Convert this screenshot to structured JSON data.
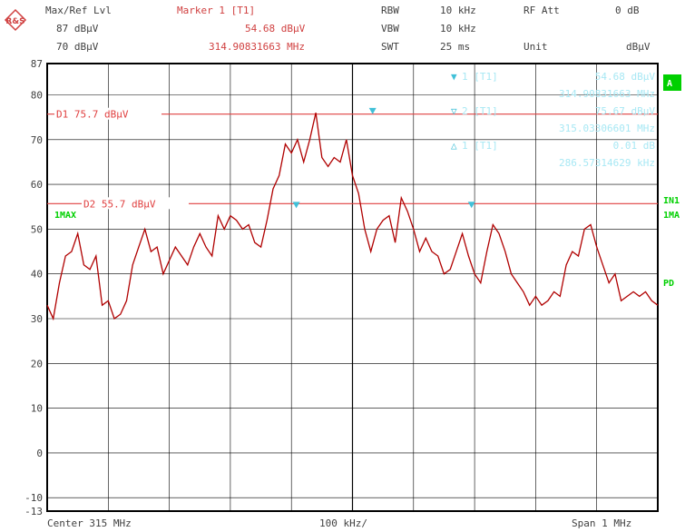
{
  "colors": {
    "trace": "#b00000",
    "display_line": "#e04040",
    "marker": "#40c0d8",
    "marker_box": "#a8e8f4",
    "side_label": "#00d000",
    "grid": "#000000",
    "text": "#404040",
    "header_red": "#d04040"
  },
  "header": {
    "logo_icon": "rohde-schwarz-diamond-icon",
    "logo_text": "R&S",
    "maxref_label": "Max/Ref Lvl",
    "maxref_value": "87 dBµV",
    "ref2_value": "70 dBµV",
    "marker_title": "Marker 1 [T1]",
    "marker_level": "54.68 dBµV",
    "marker_freq": "314.90831663 MHz",
    "rbw_label": "RBW",
    "rbw_value": "10 kHz",
    "vbw_label": "VBW",
    "vbw_value": "10 kHz",
    "swt_label": "SWT",
    "swt_value": "25 ms",
    "rfatt_label": "RF Att",
    "rfatt_value": "0 dB",
    "unit_label": "Unit",
    "unit_value": "dBµV"
  },
  "side_labels": {
    "a": "A",
    "in1": "IN1",
    "ma": "1MA",
    "pd": "PD"
  },
  "footer": {
    "center": "Center 315 MHz",
    "div": "100 kHz/",
    "span": "Span 1 MHz"
  },
  "marker_box": {
    "rows": [
      {
        "symbol": "▼",
        "id": "1",
        "trace": "[T1]",
        "value": "54.68 dBµV",
        "freq": "314.90831663 MHz"
      },
      {
        "symbol": "▽",
        "id": "2",
        "trace": "[T1]",
        "value": "75.67 dBµV",
        "freq": "315.03306601 MHz"
      },
      {
        "symbol": "△",
        "id": "1",
        "trace": "[T1]",
        "value": "0.01 dB",
        "freq": "286.57314629 kHz"
      }
    ]
  },
  "trace_label": "1MAX",
  "chart_data": {
    "type": "line",
    "xlabel": "",
    "ylabel": "",
    "xlim": [
      314.5,
      315.5
    ],
    "ylim": [
      -13,
      87
    ],
    "y_ticks": [
      "87",
      "80",
      "70",
      "60",
      "50",
      "40",
      "30",
      "20",
      "10",
      "0",
      "-10",
      "-13"
    ],
    "display_lines": [
      {
        "name": "D1",
        "label": "D1  75.7  dBµV",
        "value": 75.7
      },
      {
        "name": "D2",
        "label": "D2  55.7  dBµV",
        "value": 55.7
      }
    ],
    "series": [
      {
        "x": [
          314.5,
          314.51,
          314.52,
          314.53,
          314.54,
          314.55,
          314.56,
          314.57,
          314.58,
          314.59,
          314.6,
          314.61,
          314.62,
          314.63,
          314.64,
          314.65,
          314.66,
          314.67,
          314.68,
          314.69,
          314.7,
          314.71,
          314.72,
          314.73,
          314.74,
          314.75,
          314.76,
          314.77,
          314.78,
          314.79,
          314.8,
          314.81,
          314.82,
          314.83,
          314.84,
          314.85,
          314.86,
          314.87,
          314.88,
          314.89,
          314.9,
          314.91,
          314.92,
          314.93,
          314.94,
          314.95,
          314.96,
          314.97,
          314.98,
          314.99,
          315.0,
          315.01,
          315.02,
          315.03,
          315.04,
          315.05,
          315.06,
          315.07,
          315.08,
          315.09,
          315.1,
          315.11,
          315.12,
          315.13,
          315.14,
          315.15,
          315.16,
          315.17,
          315.18,
          315.19,
          315.2,
          315.21,
          315.22,
          315.23,
          315.24,
          315.25,
          315.26,
          315.27,
          315.28,
          315.29,
          315.3,
          315.31,
          315.32,
          315.33,
          315.34,
          315.35,
          315.36,
          315.37,
          315.38,
          315.39,
          315.4,
          315.41,
          315.42,
          315.43,
          315.44,
          315.45,
          315.46,
          315.47,
          315.48,
          315.49,
          315.5
        ],
        "y": [
          33,
          30,
          38,
          44,
          45,
          49,
          42,
          41,
          44,
          33,
          34,
          30,
          31,
          34,
          42,
          46,
          50,
          45,
          46,
          40,
          43,
          46,
          44,
          42,
          46,
          49,
          46,
          44,
          53,
          50,
          53,
          52,
          50,
          51,
          47,
          46,
          52,
          59,
          62,
          69,
          67,
          70,
          65,
          70,
          76,
          66,
          64,
          66,
          65,
          70,
          62,
          58,
          50,
          45,
          50,
          52,
          53,
          47,
          57,
          54,
          50,
          45,
          48,
          45,
          44,
          40,
          41,
          45,
          49,
          44,
          40,
          38,
          45,
          51,
          49,
          45,
          40,
          38,
          36,
          33,
          35,
          33,
          34,
          36,
          35,
          42,
          45,
          44,
          50,
          51,
          46,
          42,
          38,
          40,
          34,
          35,
          36,
          35,
          36,
          34,
          33
        ]
      }
    ],
    "markers": [
      {
        "label": "1",
        "x": 314.908,
        "y": 54.68
      },
      {
        "label": "2",
        "x": 315.033,
        "y": 75.67
      },
      {
        "label": "1",
        "x": 315.195,
        "y": 54.69
      }
    ]
  }
}
